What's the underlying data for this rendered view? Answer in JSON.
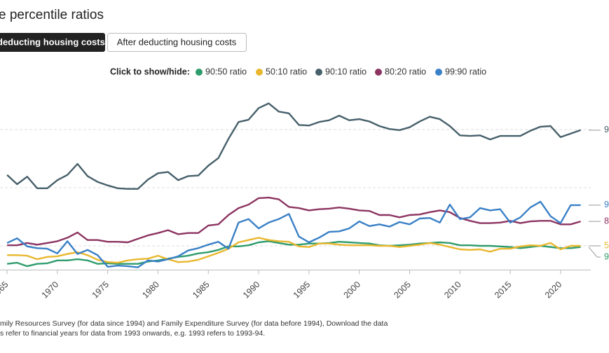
{
  "chart_data": {
    "type": "line",
    "title": "e percentile ratios",
    "buttons": [
      "deducting housing costs",
      "After deducting housing costs"
    ],
    "legend_prompt": "Click to show/hide:",
    "x": [
      1965,
      1966,
      1967,
      1968,
      1969,
      1970,
      1971,
      1972,
      1973,
      1974,
      1975,
      1976,
      1977,
      1978,
      1979,
      1980,
      1981,
      1982,
      1983,
      1984,
      1985,
      1986,
      1987,
      1988,
      1989,
      1990,
      1991,
      1992,
      1993,
      1994,
      1995,
      1996,
      1997,
      1998,
      1999,
      2000,
      2001,
      2002,
      2003,
      2004,
      2005,
      2006,
      2007,
      2008,
      2009,
      2010,
      2011,
      2012,
      2013,
      2014,
      2015,
      2016,
      2017,
      2018,
      2019,
      2020,
      2021,
      2022
    ],
    "xlim": [
      1964.3,
      2023
    ],
    "xticks": [
      1965,
      1970,
      1975,
      1980,
      1985,
      1990,
      1995,
      2000,
      2005,
      2010,
      2015,
      2020
    ],
    "ylim": [
      1.5,
      4.7
    ],
    "yticks": [
      2,
      3,
      4
    ],
    "grid": true,
    "series": [
      {
        "name": "90:50 ratio",
        "color": "#2f9c6c",
        "end_label": "9",
        "values": [
          1.69,
          1.71,
          1.65,
          1.69,
          1.7,
          1.75,
          1.75,
          1.77,
          1.75,
          1.69,
          1.7,
          1.69,
          1.69,
          1.69,
          1.73,
          1.75,
          1.78,
          1.81,
          1.83,
          1.87,
          1.89,
          1.93,
          1.99,
          1.99,
          2.01,
          2.06,
          2.08,
          2.05,
          2.02,
          2.02,
          2.04,
          2.04,
          2.05,
          2.07,
          2.06,
          2.05,
          2.04,
          2.01,
          2.0,
          2.01,
          2.02,
          2.04,
          2.05,
          2.06,
          2.05,
          2.01,
          2.01,
          2.0,
          2.0,
          1.99,
          1.98,
          1.96,
          1.98,
          2.0,
          1.98,
          1.96,
          1.96,
          1.98
        ]
      },
      {
        "name": "50:10 ratio",
        "color": "#e9b72e",
        "end_label": "5",
        "values": [
          1.84,
          1.84,
          1.83,
          1.77,
          1.81,
          1.82,
          1.86,
          1.89,
          1.84,
          1.76,
          1.72,
          1.71,
          1.75,
          1.77,
          1.78,
          1.83,
          1.77,
          1.72,
          1.73,
          1.76,
          1.82,
          1.88,
          1.95,
          2.06,
          2.1,
          2.14,
          2.1,
          2.08,
          2.07,
          1.99,
          1.98,
          2.04,
          2.04,
          2.02,
          2.01,
          2.01,
          2.01,
          2.0,
          2.0,
          1.98,
          2.0,
          2.02,
          2.05,
          2.02,
          1.98,
          1.94,
          1.93,
          1.94,
          1.9,
          1.95,
          1.95,
          1.99,
          2.01,
          2.0,
          2.05,
          1.94,
          2.0,
          2.0
        ]
      },
      {
        "name": "90:10 ratio",
        "color": "#47606b",
        "end_label": "9",
        "values": [
          3.22,
          3.06,
          3.19,
          2.99,
          2.99,
          3.13,
          3.22,
          3.41,
          3.2,
          3.1,
          3.04,
          2.99,
          2.98,
          2.98,
          3.14,
          3.25,
          3.27,
          3.13,
          3.2,
          3.21,
          3.38,
          3.51,
          3.84,
          4.13,
          4.17,
          4.37,
          4.45,
          4.31,
          4.28,
          4.08,
          4.07,
          4.13,
          4.16,
          4.24,
          4.16,
          4.18,
          4.14,
          4.06,
          4.01,
          3.99,
          4.04,
          4.14,
          4.22,
          4.18,
          4.06,
          3.9,
          3.89,
          3.9,
          3.83,
          3.89,
          3.89,
          3.89,
          3.98,
          4.05,
          4.06,
          3.87,
          3.93,
          3.99
        ]
      },
      {
        "name": "80:20 ratio",
        "color": "#8c3461",
        "end_label": "8",
        "values": [
          2.01,
          2.01,
          2.05,
          2.02,
          2.05,
          2.08,
          2.14,
          2.23,
          2.1,
          2.1,
          2.07,
          2.07,
          2.06,
          2.12,
          2.18,
          2.22,
          2.27,
          2.2,
          2.22,
          2.22,
          2.35,
          2.37,
          2.53,
          2.65,
          2.71,
          2.82,
          2.83,
          2.8,
          2.67,
          2.65,
          2.61,
          2.63,
          2.64,
          2.66,
          2.64,
          2.61,
          2.6,
          2.53,
          2.53,
          2.49,
          2.53,
          2.54,
          2.58,
          2.61,
          2.58,
          2.48,
          2.43,
          2.39,
          2.39,
          2.4,
          2.43,
          2.39,
          2.42,
          2.43,
          2.43,
          2.37,
          2.37,
          2.42
        ]
      },
      {
        "name": "99:90 ratio",
        "color": "#3a80c6",
        "end_label": "9",
        "values": [
          2.05,
          2.13,
          1.99,
          1.96,
          1.95,
          1.87,
          2.08,
          1.86,
          1.93,
          1.84,
          1.64,
          1.66,
          1.65,
          1.63,
          1.75,
          1.73,
          1.77,
          1.82,
          1.92,
          1.96,
          2.02,
          2.07,
          1.95,
          2.4,
          2.46,
          2.3,
          2.4,
          2.46,
          2.55,
          2.16,
          2.06,
          2.14,
          2.24,
          2.25,
          2.3,
          2.42,
          2.34,
          2.37,
          2.33,
          2.41,
          2.37,
          2.47,
          2.48,
          2.4,
          2.71,
          2.46,
          2.49,
          2.65,
          2.61,
          2.63,
          2.4,
          2.49,
          2.66,
          2.76,
          2.51,
          2.39,
          2.7,
          2.7
        ]
      }
    ],
    "footnotes": [
      "mily Resources Survey (for data since 1994) and Family Expenditure Survey (for data before 1994), Download the data",
      "s refer to financial years for data from 1993 onwards, e.g. 1993 refers to 1993-94."
    ]
  }
}
